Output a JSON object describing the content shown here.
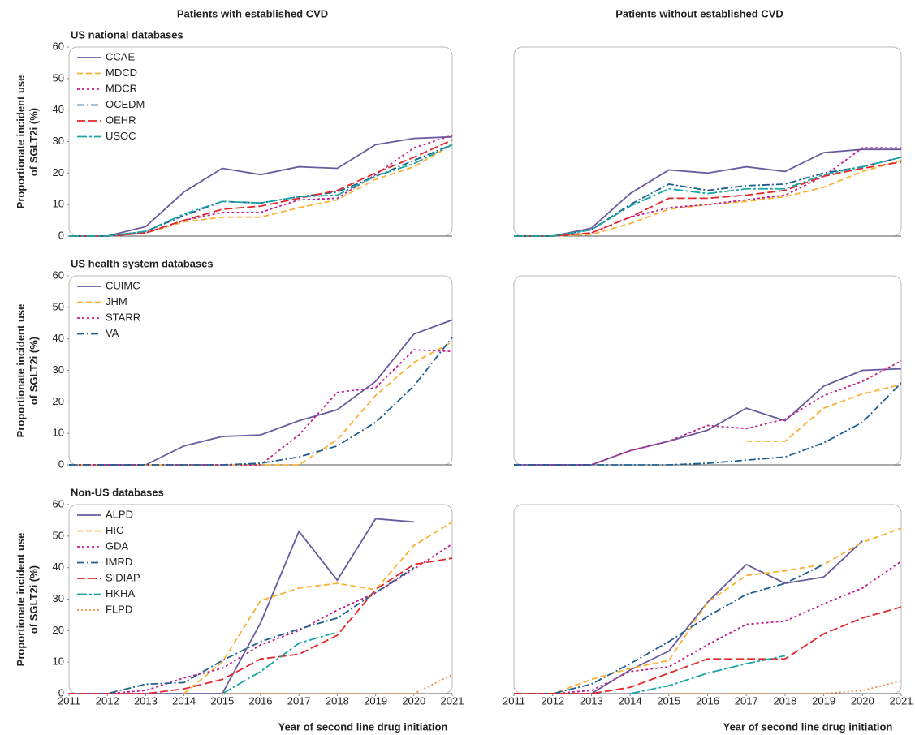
{
  "column_titles": [
    "Patients with established CVD",
    "Patients without established CVD"
  ],
  "chart_data": [
    {
      "type": "line",
      "title": "US national databases",
      "ylabel": "Proportionate incident use of SGLT2i (%)",
      "x": [
        2011,
        2012,
        2013,
        2014,
        2015,
        2016,
        2017,
        2018,
        2019,
        2020,
        2021
      ],
      "xlim": [
        2011,
        2021
      ],
      "ylim": [
        0,
        60
      ],
      "yticks": [
        0,
        10,
        20,
        30,
        40,
        50,
        60
      ],
      "legend": "upper left",
      "series": [
        {
          "name": "CCAE",
          "color": "#6a5a9e",
          "dash": "solid",
          "values": [
            0,
            0,
            3,
            14,
            21.5,
            19.5,
            22,
            21.5,
            29,
            31,
            31.5
          ]
        },
        {
          "name": "MDCD",
          "color": "#f9b234",
          "dash": "dashed",
          "values": [
            0,
            0,
            1,
            4.5,
            6,
            6,
            9,
            11.5,
            18,
            22,
            29
          ]
        },
        {
          "name": "MDCR",
          "color": "#c0208e",
          "dash": "short-dashed",
          "values": [
            0,
            0,
            1,
            5,
            7.5,
            7.5,
            11.5,
            12,
            19.5,
            28,
            32
          ]
        },
        {
          "name": "OCEDM",
          "color": "#1f5f8f",
          "dash": "dash-dot",
          "values": [
            0,
            0,
            1.5,
            6.5,
            11,
            10.5,
            12.5,
            14,
            19,
            24,
            29
          ]
        },
        {
          "name": "OEHR",
          "color": "#e3282c",
          "dash": "long-dashed",
          "values": [
            0,
            0,
            1,
            5,
            8.5,
            9.5,
            12,
            14.5,
            20,
            25,
            30.5
          ]
        },
        {
          "name": "USOC",
          "color": "#19a6a6",
          "dash": "long-dash-dot",
          "values": [
            0,
            0,
            1.5,
            7,
            11,
            10.5,
            12.5,
            13,
            19,
            23,
            29
          ]
        }
      ]
    },
    {
      "type": "line",
      "x": [
        2011,
        2012,
        2013,
        2014,
        2015,
        2016,
        2017,
        2018,
        2019,
        2020,
        2021
      ],
      "xlim": [
        2011,
        2021
      ],
      "ylim": [
        0,
        60
      ],
      "series": [
        {
          "color": "#6a5a9e",
          "dash": "solid",
          "values": [
            0,
            0,
            2.5,
            13.5,
            21,
            20,
            22,
            20.5,
            26.5,
            27.5,
            27.5
          ]
        },
        {
          "color": "#f9b234",
          "dash": "dashed",
          "values": [
            0,
            0,
            0.5,
            4,
            8.5,
            10,
            11,
            12.5,
            15.5,
            20.5,
            24
          ]
        },
        {
          "color": "#c0208e",
          "dash": "short-dashed",
          "values": [
            0,
            0,
            1,
            6,
            9,
            10,
            11.5,
            13,
            19,
            28,
            28
          ]
        },
        {
          "color": "#1f5f8f",
          "dash": "dash-dot",
          "values": [
            0,
            0,
            2,
            10,
            16.5,
            14.5,
            16,
            16.5,
            20,
            22,
            25
          ]
        },
        {
          "color": "#e3282c",
          "dash": "long-dashed",
          "values": [
            0,
            0,
            1,
            6,
            12,
            12,
            13,
            14.5,
            19,
            21.5,
            23.5
          ]
        },
        {
          "color": "#19a6a6",
          "dash": "long-dash-dot",
          "values": [
            0,
            0,
            2,
            9.5,
            15,
            13.5,
            15,
            15,
            19.5,
            22,
            25
          ]
        }
      ]
    },
    {
      "type": "line",
      "title": "US health system databases",
      "ylabel": "Proportionate incident use of SGLT2i (%)",
      "x": [
        2011,
        2012,
        2013,
        2014,
        2015,
        2016,
        2017,
        2018,
        2019,
        2020,
        2021
      ],
      "xlim": [
        2011,
        2021
      ],
      "ylim": [
        0,
        60
      ],
      "yticks": [
        0,
        10,
        20,
        30,
        40,
        50,
        60
      ],
      "legend": "upper left",
      "series": [
        {
          "name": "CUIMC",
          "color": "#6a5a9e",
          "dash": "solid",
          "values": [
            0,
            0,
            0,
            6,
            9,
            9.5,
            14,
            17.5,
            26.5,
            41.5,
            46
          ]
        },
        {
          "name": "JHM",
          "color": "#f9b234",
          "dash": "dashed",
          "values": [
            0,
            0,
            0,
            0,
            0,
            0,
            0,
            8,
            22,
            32.5,
            39
          ]
        },
        {
          "name": "STARR",
          "color": "#c0208e",
          "dash": "short-dashed",
          "values": [
            0,
            0,
            0,
            0,
            0,
            0,
            9.5,
            23,
            24.5,
            36.5,
            36
          ]
        },
        {
          "name": "VA",
          "color": "#1f5f8f",
          "dash": "dash-dot",
          "values": [
            0,
            0,
            0,
            0,
            0,
            0.5,
            2.5,
            6,
            13.5,
            25,
            40.5
          ]
        }
      ]
    },
    {
      "type": "line",
      "x": [
        2011,
        2012,
        2013,
        2014,
        2015,
        2016,
        2017,
        2018,
        2019,
        2020,
        2021
      ],
      "xlim": [
        2011,
        2021
      ],
      "ylim": [
        0,
        60
      ],
      "series": [
        {
          "color": "#6a5a9e",
          "dash": "solid",
          "values": [
            0,
            0,
            0,
            4.5,
            7.5,
            11,
            18,
            14,
            25,
            30,
            30.5
          ]
        },
        {
          "color": "#f9b234",
          "dash": "dashed",
          "values": [
            null,
            null,
            null,
            null,
            null,
            null,
            7.5,
            7.5,
            18,
            22.5,
            25.5
          ]
        },
        {
          "color": "#c0208e",
          "dash": "short-dashed",
          "values": [
            0,
            0,
            0,
            4.5,
            7.5,
            12.5,
            11.5,
            14.5,
            22,
            26.5,
            33
          ]
        },
        {
          "color": "#1f5f8f",
          "dash": "dash-dot",
          "values": [
            0,
            0,
            0,
            0,
            0,
            0.5,
            1.5,
            2.5,
            7,
            13.5,
            26
          ]
        }
      ]
    },
    {
      "type": "line",
      "title": "Non-US databases",
      "ylabel": "Proportionate incident use of SGLT2i (%)",
      "xlabel": "Year of second line drug initiation",
      "x": [
        2011,
        2012,
        2013,
        2014,
        2015,
        2016,
        2017,
        2018,
        2019,
        2020,
        2021
      ],
      "xlim": [
        2011,
        2021
      ],
      "xticks": [
        2011,
        2012,
        2013,
        2014,
        2015,
        2016,
        2017,
        2018,
        2019,
        2020,
        2021
      ],
      "ylim": [
        0,
        60
      ],
      "yticks": [
        0,
        10,
        20,
        30,
        40,
        50,
        60
      ],
      "legend": "upper left",
      "series": [
        {
          "name": "ALPD",
          "color": "#6a5a9e",
          "dash": "solid",
          "values": [
            0,
            0,
            0,
            0,
            0,
            22.5,
            51.5,
            36,
            55.5,
            54.5,
            null
          ]
        },
        {
          "name": "HIC",
          "color": "#f9b234",
          "dash": "dashed",
          "values": [
            null,
            null,
            null,
            0,
            10,
            29.5,
            33.5,
            35,
            33,
            47,
            54.5
          ]
        },
        {
          "name": "GDA",
          "color": "#c0208e",
          "dash": "short-dashed",
          "values": [
            0,
            0,
            1,
            5,
            8,
            15.5,
            20,
            26.5,
            32,
            39.5,
            47.5
          ]
        },
        {
          "name": "IMRD",
          "color": "#1f5f8f",
          "dash": "dash-dot",
          "values": [
            0,
            0,
            3,
            3.5,
            10.5,
            16.5,
            20.5,
            24,
            32,
            40,
            null
          ]
        },
        {
          "name": "SIDIAP",
          "color": "#e3282c",
          "dash": "long-dashed",
          "values": [
            0,
            0,
            0,
            1.5,
            4.5,
            11,
            12.5,
            18.5,
            33,
            41,
            43
          ]
        },
        {
          "name": "HKHA",
          "color": "#19a6a6",
          "dash": "long-dash-dot",
          "values": [
            null,
            null,
            null,
            null,
            0,
            7,
            16,
            19.5,
            null,
            null,
            null
          ]
        },
        {
          "name": "FLPD",
          "color": "#f08a4b",
          "dash": "dotted",
          "values": [
            null,
            null,
            null,
            null,
            0,
            0,
            0,
            0,
            0,
            0,
            6
          ]
        }
      ]
    },
    {
      "type": "line",
      "xlabel": "Year of second line drug initiation",
      "x": [
        2011,
        2012,
        2013,
        2014,
        2015,
        2016,
        2017,
        2018,
        2019,
        2020,
        2021
      ],
      "xlim": [
        2011,
        2021
      ],
      "xticks": [
        2011,
        2012,
        2013,
        2014,
        2015,
        2016,
        2017,
        2018,
        2019,
        2020,
        2021
      ],
      "ylim": [
        0,
        60
      ],
      "series": [
        {
          "color": "#6a5a9e",
          "dash": "solid",
          "values": [
            0,
            0,
            0,
            7.5,
            13.5,
            29,
            41,
            35,
            37,
            48.5,
            null
          ]
        },
        {
          "color": "#f9b234",
          "dash": "dashed",
          "values": [
            0,
            0,
            4.5,
            8,
            10.5,
            29,
            37.5,
            39,
            41,
            48,
            52.5
          ]
        },
        {
          "color": "#c0208e",
          "dash": "short-dashed",
          "values": [
            0,
            0,
            1,
            7,
            8.5,
            15.5,
            22,
            23,
            28.5,
            33.5,
            42
          ]
        },
        {
          "color": "#1f5f8f",
          "dash": "dash-dot",
          "values": [
            0,
            0,
            3,
            9.5,
            16.5,
            24.5,
            31.5,
            35,
            41,
            null,
            null
          ]
        },
        {
          "color": "#e3282c",
          "dash": "long-dashed",
          "values": [
            0,
            0,
            0,
            2,
            6.5,
            11,
            11,
            11,
            19,
            24,
            27.5
          ]
        },
        {
          "color": "#19a6a6",
          "dash": "long-dash-dot",
          "values": [
            null,
            null,
            null,
            0,
            2.5,
            6.5,
            9.5,
            12,
            null,
            null,
            null
          ]
        },
        {
          "color": "#f08a4b",
          "dash": "dotted",
          "values": [
            null,
            null,
            null,
            null,
            0,
            0,
            0,
            0,
            0,
            1,
            4
          ]
        }
      ]
    }
  ]
}
